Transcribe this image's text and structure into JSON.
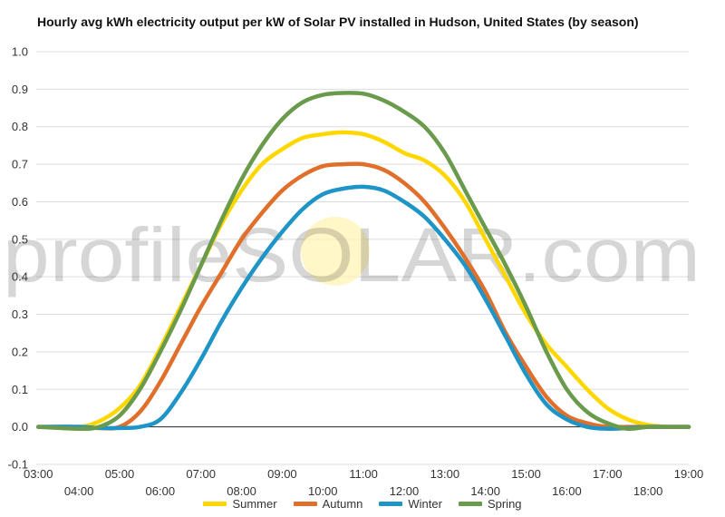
{
  "chart_data": {
    "type": "line",
    "title": "Hourly avg kWh electricity output per kW of Solar PV installed in Hudson, United States (by season)",
    "xlabel": "",
    "ylabel": "",
    "ylim": [
      -0.1,
      1.0
    ],
    "yticks": [
      "1.0",
      "0.9",
      "0.8",
      "0.7",
      "0.6",
      "0.5",
      "0.4",
      "0.3",
      "0.2",
      "0.1",
      "0.0",
      "-0.1"
    ],
    "xlim": [
      2.95,
      19.0
    ],
    "xticks": [
      "03:00",
      "04:00",
      "05:00",
      "06:00",
      "07:00",
      "08:00",
      "09:00",
      "10:00",
      "11:00",
      "12:00",
      "13:00",
      "14:00",
      "15:00",
      "16:00",
      "17:00",
      "18:00",
      "19:00"
    ],
    "grid": true,
    "legend_position": "bottom",
    "watermark": "profileSOLAR.com",
    "series": [
      {
        "name": "Summer",
        "color": "#FFD700",
        "x": [
          3,
          4,
          4.5,
          5,
          5.5,
          6,
          6.5,
          7,
          7.5,
          8,
          8.5,
          9,
          9.5,
          10,
          10.5,
          11,
          11.5,
          12,
          12.5,
          13,
          13.5,
          14,
          14.5,
          15,
          15.5,
          16,
          16.5,
          17,
          17.5,
          18,
          18.5,
          19
        ],
        "y": [
          0.0,
          0.0,
          0.015,
          0.05,
          0.11,
          0.21,
          0.32,
          0.43,
          0.54,
          0.63,
          0.7,
          0.74,
          0.77,
          0.78,
          0.785,
          0.78,
          0.76,
          0.73,
          0.71,
          0.67,
          0.6,
          0.5,
          0.4,
          0.3,
          0.22,
          0.16,
          0.1,
          0.05,
          0.02,
          0.005,
          0.0,
          0.0
        ]
      },
      {
        "name": "Autumn",
        "color": "#E06F2B",
        "x": [
          3,
          4,
          4.5,
          5,
          5.5,
          6,
          6.5,
          7,
          7.5,
          8,
          8.5,
          9,
          9.5,
          10,
          10.5,
          11,
          11.5,
          12,
          12.5,
          13,
          13.5,
          14,
          14.5,
          15,
          15.5,
          16,
          16.5,
          17,
          17.5,
          18,
          18.5,
          19
        ],
        "y": [
          0.0,
          0.0,
          -0.003,
          0.0,
          0.04,
          0.12,
          0.22,
          0.32,
          0.41,
          0.5,
          0.57,
          0.63,
          0.67,
          0.695,
          0.7,
          0.7,
          0.685,
          0.65,
          0.6,
          0.53,
          0.45,
          0.36,
          0.25,
          0.16,
          0.08,
          0.03,
          0.01,
          0.0,
          0.0,
          0.0,
          0.0,
          0.0
        ]
      },
      {
        "name": "Winter",
        "color": "#1F94C6",
        "x": [
          3,
          4,
          4.5,
          5,
          5.5,
          6,
          6.5,
          7,
          7.5,
          8,
          8.5,
          9,
          9.5,
          10,
          10.5,
          11,
          11.5,
          12,
          12.5,
          13,
          13.5,
          14,
          14.5,
          15,
          15.5,
          16,
          16.5,
          17,
          17.5,
          18,
          18.5,
          19
        ],
        "y": [
          0.0,
          0.0,
          -0.003,
          -0.003,
          0.0,
          0.02,
          0.09,
          0.18,
          0.28,
          0.37,
          0.45,
          0.52,
          0.58,
          0.62,
          0.635,
          0.64,
          0.63,
          0.6,
          0.56,
          0.5,
          0.43,
          0.34,
          0.24,
          0.14,
          0.06,
          0.02,
          0.0,
          -0.005,
          -0.003,
          0.0,
          0.0,
          0.0
        ]
      },
      {
        "name": "Spring",
        "color": "#6A9B4C",
        "x": [
          3,
          4,
          4.5,
          5,
          5.5,
          6,
          6.5,
          7,
          7.5,
          8,
          8.5,
          9,
          9.5,
          10,
          10.5,
          11,
          11.5,
          12,
          12.5,
          13,
          13.5,
          14,
          14.5,
          15,
          15.5,
          16,
          16.5,
          17,
          17.5,
          18,
          18.5,
          19
        ],
        "y": [
          0.0,
          -0.005,
          0.0,
          0.03,
          0.1,
          0.2,
          0.31,
          0.43,
          0.55,
          0.66,
          0.75,
          0.82,
          0.865,
          0.885,
          0.89,
          0.888,
          0.87,
          0.84,
          0.8,
          0.73,
          0.63,
          0.53,
          0.43,
          0.32,
          0.2,
          0.1,
          0.04,
          0.01,
          -0.005,
          0.0,
          0.0,
          0.0
        ]
      }
    ]
  }
}
